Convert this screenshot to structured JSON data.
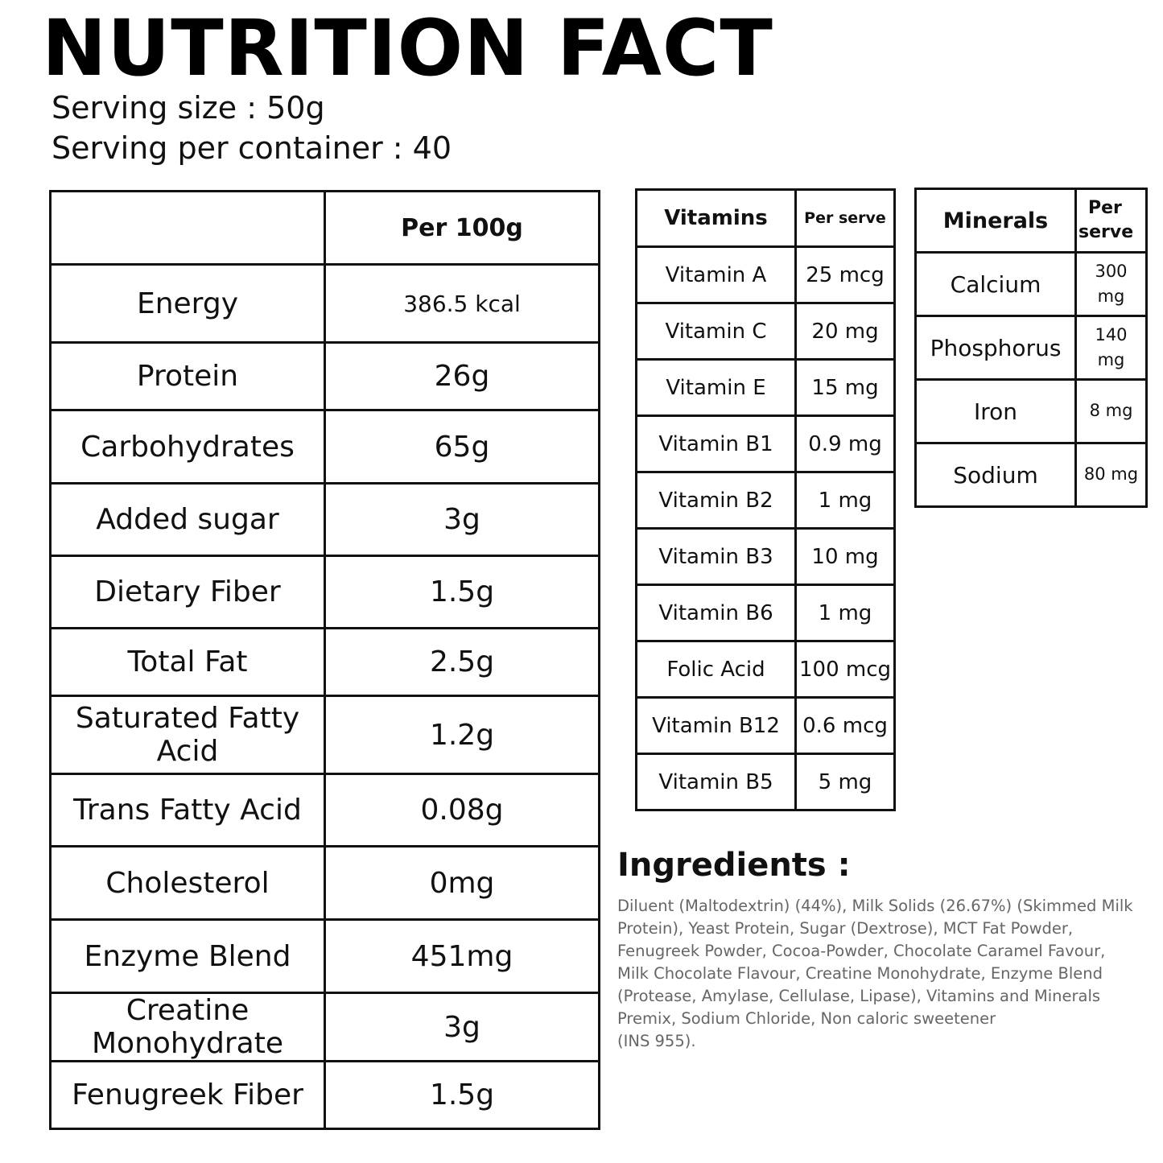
{
  "title": "NUTRITION FACT",
  "serving_size": "Serving size : 50g",
  "serving_per_container": "Serving per container : 40",
  "nutrition": {
    "header_value": "Per 100g",
    "rows": [
      {
        "name": "Energy",
        "value": "386.5 kcal"
      },
      {
        "name": "Protein",
        "value": "26g"
      },
      {
        "name": "Carbohydrates",
        "value": "65g"
      },
      {
        "name": "Added sugar",
        "value": "3g"
      },
      {
        "name": "Dietary Fiber",
        "value": "1.5g"
      },
      {
        "name": "Total Fat",
        "value": "2.5g"
      },
      {
        "name": "Saturated Fatty Acid",
        "value": "1.2g"
      },
      {
        "name": "Trans Fatty Acid",
        "value": "0.08g"
      },
      {
        "name": "Cholesterol",
        "value": "0mg"
      },
      {
        "name": "Enzyme Blend",
        "value": "451mg"
      },
      {
        "name": "Creatine Monohydrate",
        "value": "3g"
      },
      {
        "name": "Fenugreek Fiber",
        "value": "1.5g"
      }
    ]
  },
  "vitamins": {
    "header_name": "Vitamins",
    "header_value": "Per serve",
    "rows": [
      {
        "name": "Vitamin A",
        "value": "25 mcg"
      },
      {
        "name": "Vitamin C",
        "value": "20 mg"
      },
      {
        "name": "Vitamin E",
        "value": "15 mg"
      },
      {
        "name": "Vitamin B1",
        "value": "0.9 mg"
      },
      {
        "name": "Vitamin B2",
        "value": "1 mg"
      },
      {
        "name": "Vitamin B3",
        "value": "10 mg"
      },
      {
        "name": "Vitamin B6",
        "value": "1 mg"
      },
      {
        "name": "Folic Acid",
        "value": "100 mcg"
      },
      {
        "name": "Vitamin B12",
        "value": "0.6 mcg"
      },
      {
        "name": "Vitamin B5",
        "value": "5 mg"
      }
    ]
  },
  "minerals": {
    "header_name": "Minerals",
    "header_value_line1": "Per",
    "header_value_line2": "serve",
    "rows": [
      {
        "name": "Calcium",
        "value_line1": "300",
        "value_line2": "mg"
      },
      {
        "name": "Phosphorus",
        "value_line1": "140",
        "value_line2": "mg"
      },
      {
        "name": "Iron",
        "value_line1": "8 mg",
        "value_line2": ""
      },
      {
        "name": "Sodium",
        "value_line1": "80 mg",
        "value_line2": ""
      }
    ]
  },
  "ingredients": {
    "title": "Ingredients :",
    "lines": [
      "Diluent (Maltodextrin) (44%), Milk Solids (26.67%) (Skimmed Milk",
      "Protein), Yeast Protein, Sugar (Dextrose), MCT Fat Powder,",
      "Fenugreek Powder, Cocoa-Powder, Chocolate Caramel Favour,",
      "Milk Chocolate Flavour, Creatine Monohydrate, Enzyme Blend",
      "(Protease, Amylase, Cellulase, Lipase), Vitamins and Minerals",
      "Premix, Sodium Chloride, Non caloric sweetener",
      "(INS 955)."
    ]
  }
}
